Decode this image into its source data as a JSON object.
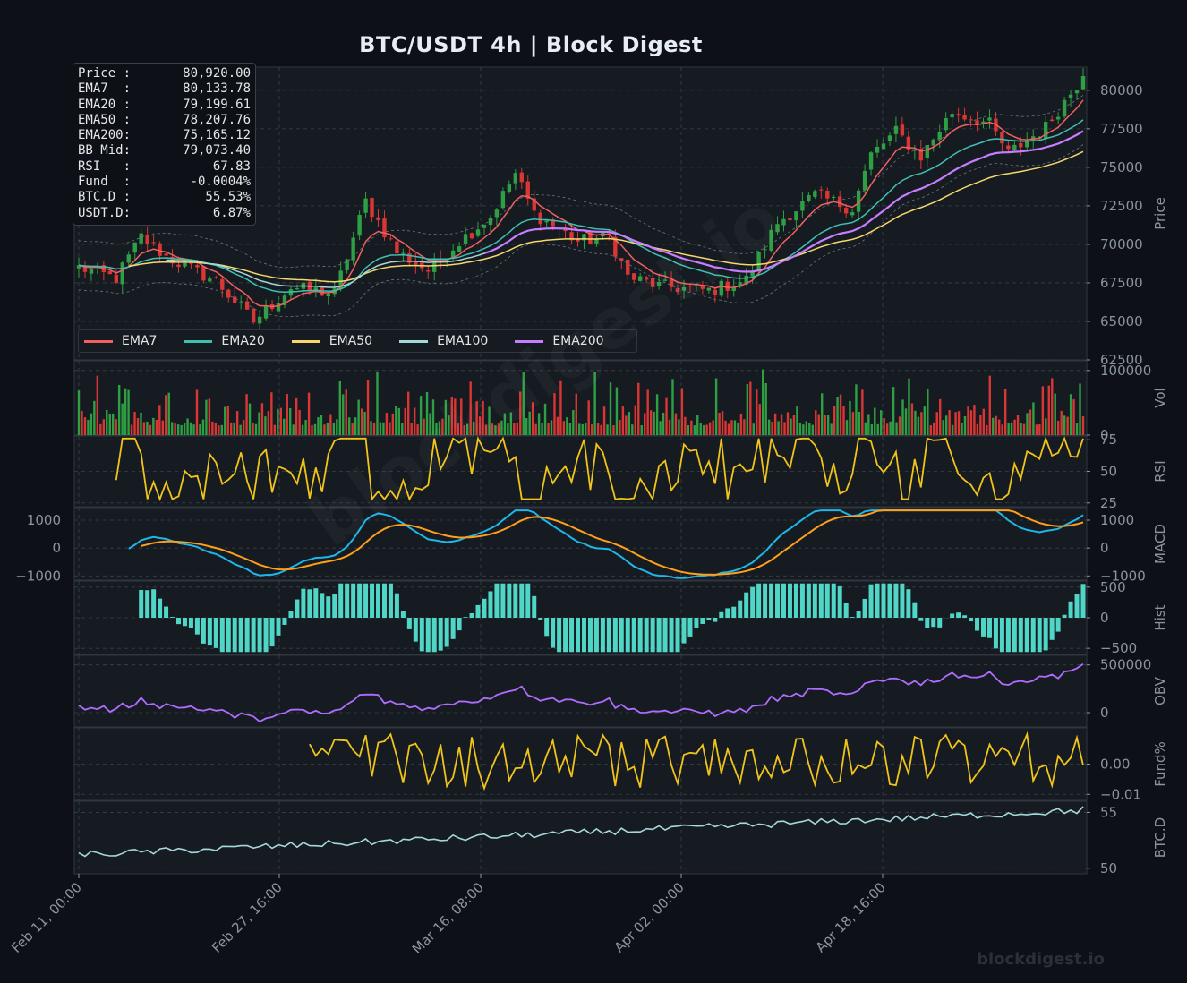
{
  "title": "BTC/USDT  4h  |  Block Digest",
  "footer": "blockdigest.io",
  "watermark": "blockdigest.io",
  "info_box": [
    {
      "label": "Price :",
      "value": "80,920.00"
    },
    {
      "label": "EMA7  :",
      "value": "80,133.78"
    },
    {
      "label": "EMA20 :",
      "value": "79,199.61"
    },
    {
      "label": "EMA50 :",
      "value": "78,207.76"
    },
    {
      "label": "EMA200:",
      "value": "75,165.12"
    },
    {
      "label": "BB Mid:",
      "value": "79,073.40"
    },
    {
      "label": "RSI   :",
      "value": "67.83"
    },
    {
      "label": "Fund  :",
      "value": "-0.0004%"
    },
    {
      "label": "BTC.D :",
      "value": "55.53%"
    },
    {
      "label": "USDT.D:",
      "value": "6.87%"
    }
  ],
  "legend": [
    {
      "name": "EMA7",
      "color": "#f06060"
    },
    {
      "name": "EMA20",
      "color": "#3fbfb2"
    },
    {
      "name": "EMA50",
      "color": "#f5d76e"
    },
    {
      "name": "EMA100",
      "color": "#a5d8d8"
    },
    {
      "name": "EMA200",
      "color": "#c77dff"
    }
  ],
  "colors": {
    "background": "#0d1117",
    "panel": "#161b22",
    "grid": "#3a404a",
    "up": "#2ea043",
    "down": "#da3633",
    "rsi": "#f0c419",
    "macd": "#1fb6e8",
    "signal": "#ff9f1a",
    "hist": "#4fd6c6",
    "obv": "#b06cff",
    "fund": "#f0c419",
    "btcd": "#a5d8d8",
    "axis_text": "#8b949e"
  },
  "chart_data": {
    "type": "line",
    "x_ticks": [
      "Feb 11, 00:00",
      "Feb 27, 16:00",
      "Mar 16, 08:00",
      "Apr 02, 00:00",
      "Apr 18, 16:00"
    ],
    "panels": [
      {
        "name": "Price",
        "ylabel": "Price",
        "ylim": [
          62500,
          81500
        ],
        "ticks": [
          "62500",
          "65000",
          "67500",
          "70000",
          "72500",
          "75000",
          "77500",
          "80000"
        ],
        "tick_values": [
          62500,
          65000,
          67500,
          70000,
          72500,
          75000,
          77500,
          80000
        ],
        "key_points": [
          [
            0,
            68500
          ],
          [
            6,
            67800
          ],
          [
            10,
            70500
          ],
          [
            14,
            69200
          ],
          [
            22,
            67600
          ],
          [
            28,
            65000
          ],
          [
            34,
            67200
          ],
          [
            41,
            66800
          ],
          [
            46,
            72800
          ],
          [
            51,
            69500
          ],
          [
            56,
            68300
          ],
          [
            61,
            70200
          ],
          [
            66,
            71800
          ],
          [
            70,
            74600
          ],
          [
            73,
            72000
          ],
          [
            80,
            70200
          ],
          [
            85,
            70500
          ],
          [
            88,
            67900
          ],
          [
            93,
            67300
          ],
          [
            101,
            67000
          ],
          [
            107,
            67700
          ],
          [
            112,
            71400
          ],
          [
            118,
            73200
          ],
          [
            124,
            72300
          ],
          [
            127,
            75800
          ],
          [
            131,
            77300
          ],
          [
            135,
            75700
          ],
          [
            140,
            78600
          ],
          [
            146,
            77800
          ],
          [
            149,
            75900
          ],
          [
            155,
            77600
          ],
          [
            161,
            80920
          ]
        ]
      },
      {
        "name": "Vol",
        "ylabel": "Vol",
        "ylim": [
          0,
          115000
        ],
        "ticks": [
          "0",
          "100000"
        ],
        "tick_values": [
          0,
          100000
        ]
      },
      {
        "name": "RSI",
        "ylabel": "RSI",
        "ylim": [
          22,
          78
        ],
        "ticks": [
          "25",
          "50",
          "75"
        ],
        "tick_values": [
          25,
          50,
          75
        ]
      },
      {
        "name": "MACD",
        "ylabel": "MACD",
        "ylim": [
          -1150,
          1450
        ],
        "ticks": [
          "1000",
          "0",
          "−1000"
        ],
        "tick_values": [
          1000,
          0,
          -1000
        ]
      },
      {
        "name": "Hist",
        "ylabel": "Hist",
        "ylim": [
          -600,
          600
        ],
        "ticks": [
          "500",
          "0",
          "−500"
        ],
        "tick_values": [
          500,
          0,
          -500
        ]
      },
      {
        "name": "OBV",
        "ylabel": "OBV",
        "ylim": [
          -150000,
          600000
        ],
        "ticks": [
          "500000",
          "0"
        ],
        "tick_values": [
          500000,
          0
        ]
      },
      {
        "name": "Fund%",
        "ylabel": "Fund%",
        "ylim": [
          -0.012,
          0.012
        ],
        "ticks": [
          "0.00",
          "−0.01"
        ],
        "tick_values": [
          0,
          -0.01
        ]
      },
      {
        "name": "BTC.D",
        "ylabel": "BTC.D",
        "ylim": [
          49.5,
          56
        ],
        "ticks": [
          "55",
          "50"
        ],
        "tick_values": [
          55,
          50
        ]
      }
    ],
    "series": [
      {
        "name": "EMA7"
      },
      {
        "name": "EMA20"
      },
      {
        "name": "EMA50"
      },
      {
        "name": "EMA100"
      },
      {
        "name": "EMA200"
      }
    ],
    "last_values": {
      "price": 80920.0,
      "ema7": 80133.78,
      "ema20": 79199.61,
      "ema50": 78207.76,
      "ema200": 75165.12,
      "bb_mid": 79073.4,
      "rsi": 67.83,
      "fund_pct": -0.0004,
      "btc_d": 55.53,
      "usdt_d": 6.87
    },
    "grid": true,
    "legend_position": "bottom-left"
  }
}
